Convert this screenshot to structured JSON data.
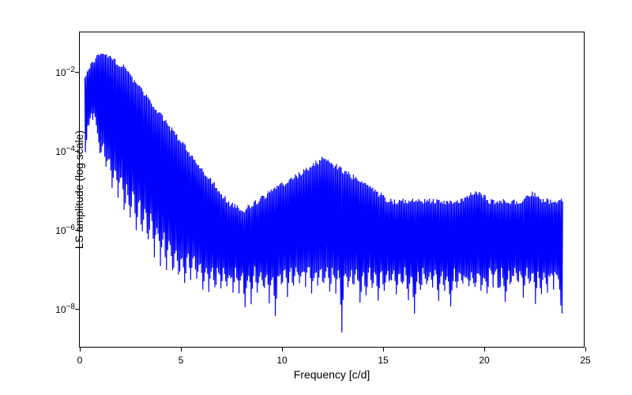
{
  "chart": {
    "type": "line",
    "xlabel": "Frequency [c/d]",
    "ylabel": "LS amplitude (log scale)",
    "xlim": [
      0,
      25
    ],
    "ylim_log10": [
      -9,
      -1
    ],
    "xticks": [
      0,
      5,
      10,
      15,
      20,
      25
    ],
    "yticks_exponents": [
      -8,
      -6,
      -4,
      -2
    ],
    "yscale": "log",
    "background_color": "#ffffff",
    "border_color": "#000000",
    "label_fontsize": 14,
    "tick_fontsize": 12,
    "line_color": "#0000ff",
    "line_width": 1.2,
    "series": {
      "freq": [
        0.25,
        0.4,
        0.55,
        0.7,
        0.85,
        1.0,
        1.15,
        1.3,
        1.45,
        1.6,
        1.75,
        1.9,
        2.05,
        2.2,
        2.35,
        2.5,
        2.65,
        2.8,
        2.95,
        3.1,
        3.25,
        3.4,
        3.55,
        3.7,
        3.85,
        4.0,
        4.15,
        4.3,
        4.45,
        4.6,
        4.75,
        4.9,
        5.05,
        5.2,
        5.35,
        5.5,
        5.65,
        5.8,
        5.95,
        6.1,
        6.25,
        6.4,
        6.55,
        6.7,
        6.85,
        7.0,
        7.15,
        7.3,
        7.45,
        7.6,
        7.75,
        7.9,
        8.05,
        8.2,
        8.35,
        8.5,
        8.65,
        8.8,
        8.95,
        9.1,
        9.25,
        9.4,
        9.55,
        9.7,
        9.85,
        10.0,
        10.15,
        10.3,
        10.45,
        10.6,
        10.75,
        10.9,
        11.05,
        11.2,
        11.35,
        11.5,
        11.65,
        11.8,
        11.95,
        12.1,
        12.25,
        12.4,
        12.55,
        12.7,
        12.85,
        13.0,
        13.15,
        13.3,
        13.45,
        13.6,
        13.75,
        13.9,
        14.05,
        14.2,
        14.35,
        14.5,
        14.65,
        14.8,
        14.95,
        15.1,
        15.25,
        15.4,
        15.55,
        15.7,
        15.85,
        16.0,
        16.15,
        16.3,
        16.45,
        16.6,
        16.75,
        16.9,
        17.05,
        17.2,
        17.35,
        17.5,
        17.65,
        17.8,
        17.95,
        18.1,
        18.25,
        18.4,
        18.55,
        18.7,
        18.85,
        19.0,
        19.15,
        19.3,
        19.45,
        19.6,
        19.75,
        19.9,
        20.05,
        20.2,
        20.35,
        20.5,
        20.65,
        20.8,
        20.95,
        21.1,
        21.25,
        21.4,
        21.55,
        21.7,
        21.85,
        22.0,
        22.15,
        22.3,
        22.45,
        22.6,
        22.75,
        22.9,
        23.05,
        23.2,
        23.35,
        23.5,
        23.65,
        23.8,
        23.95
      ],
      "log10_envelope_high": [
        -2.15,
        -2.0,
        -1.85,
        -1.7,
        -1.65,
        -1.6,
        -1.6,
        -1.6,
        -1.65,
        -1.7,
        -1.75,
        -1.8,
        -1.85,
        -1.9,
        -2.0,
        -2.1,
        -2.2,
        -2.3,
        -2.4,
        -2.5,
        -2.6,
        -2.7,
        -2.8,
        -2.9,
        -3.0,
        -3.1,
        -3.2,
        -3.3,
        -3.4,
        -3.5,
        -3.6,
        -3.7,
        -3.8,
        -3.9,
        -4.0,
        -4.1,
        -4.2,
        -4.3,
        -4.4,
        -4.5,
        -4.6,
        -4.7,
        -4.8,
        -4.9,
        -5.0,
        -5.1,
        -5.2,
        -5.3,
        -5.35,
        -5.4,
        -5.45,
        -5.5,
        -5.55,
        -5.5,
        -5.45,
        -5.4,
        -5.35,
        -5.3,
        -5.25,
        -5.2,
        -5.15,
        -5.1,
        -5.05,
        -5.0,
        -4.95,
        -4.9,
        -4.85,
        -4.8,
        -4.75,
        -4.7,
        -4.65,
        -4.6,
        -4.55,
        -4.5,
        -4.45,
        -4.4,
        -4.35,
        -4.3,
        -4.25,
        -4.2,
        -4.25,
        -4.3,
        -4.35,
        -4.4,
        -4.45,
        -4.5,
        -4.55,
        -4.6,
        -4.65,
        -4.7,
        -4.75,
        -4.8,
        -4.85,
        -4.9,
        -4.95,
        -5.0,
        -5.05,
        -5.1,
        -5.15,
        -5.2,
        -5.25,
        -5.3,
        -5.3,
        -5.3,
        -5.3,
        -5.3,
        -5.3,
        -5.3,
        -5.3,
        -5.3,
        -5.3,
        -5.3,
        -5.3,
        -5.3,
        -5.3,
        -5.3,
        -5.3,
        -5.3,
        -5.3,
        -5.3,
        -5.3,
        -5.3,
        -5.3,
        -5.3,
        -5.3,
        -5.25,
        -5.2,
        -5.15,
        -5.1,
        -5.05,
        -5.1,
        -5.15,
        -5.2,
        -5.25,
        -5.3,
        -5.3,
        -5.3,
        -5.3,
        -5.3,
        -5.3,
        -5.3,
        -5.3,
        -5.3,
        -5.3,
        -5.3,
        -5.25,
        -5.2,
        -5.15,
        -5.1,
        -5.15,
        -5.2,
        -5.25,
        -5.3,
        -5.3,
        -5.3,
        -5.3,
        -5.3,
        -5.3,
        -5.3
      ],
      "log10_envelope_low": [
        -4.0,
        -3.5,
        -3.2,
        -3.0,
        -3.5,
        -4.0,
        -3.8,
        -4.5,
        -4.0,
        -5.0,
        -4.2,
        -5.2,
        -4.5,
        -5.5,
        -4.8,
        -5.8,
        -5.0,
        -6.0,
        -5.2,
        -6.2,
        -5.4,
        -6.4,
        -5.6,
        -6.6,
        -5.8,
        -6.8,
        -6.0,
        -7.0,
        -6.2,
        -7.2,
        -6.4,
        -7.3,
        -6.5,
        -7.4,
        -6.6,
        -7.4,
        -6.7,
        -7.4,
        -6.8,
        -7.4,
        -6.9,
        -7.5,
        -7.0,
        -7.5,
        -7.0,
        -7.5,
        -7.0,
        -7.6,
        -7.0,
        -7.6,
        -7.0,
        -7.7,
        -7.0,
        -8.0,
        -7.0,
        -7.8,
        -7.0,
        -7.5,
        -7.0,
        -7.6,
        -7.0,
        -7.8,
        -7.0,
        -8.2,
        -7.0,
        -7.5,
        -7.0,
        -7.6,
        -7.0,
        -7.4,
        -7.0,
        -7.5,
        -7.0,
        -7.4,
        -7.0,
        -7.5,
        -7.0,
        -7.3,
        -7.0,
        -7.4,
        -7.0,
        -7.5,
        -7.0,
        -7.6,
        -7.0,
        -8.5,
        -7.0,
        -7.6,
        -7.0,
        -7.5,
        -7.0,
        -7.8,
        -7.0,
        -7.6,
        -7.0,
        -7.5,
        -7.0,
        -7.7,
        -7.0,
        -7.5,
        -7.0,
        -7.4,
        -7.0,
        -7.6,
        -7.0,
        -7.5,
        -7.0,
        -7.8,
        -7.0,
        -8.2,
        -7.0,
        -7.6,
        -7.0,
        -7.5,
        -7.0,
        -7.4,
        -7.0,
        -7.7,
        -7.0,
        -7.5,
        -7.0,
        -8.0,
        -7.0,
        -7.6,
        -7.0,
        -7.5,
        -7.0,
        -7.4,
        -7.0,
        -7.6,
        -7.0,
        -7.5,
        -7.0,
        -7.7,
        -7.0,
        -7.5,
        -7.0,
        -7.6,
        -7.0,
        -8.0,
        -7.0,
        -7.5,
        -7.0,
        -7.4,
        -7.0,
        -7.6,
        -7.0,
        -7.5,
        -7.0,
        -7.8,
        -7.0,
        -7.6,
        -7.0,
        -7.5,
        -7.0,
        -7.4,
        -7.0,
        -7.6,
        -8.4
      ]
    }
  }
}
